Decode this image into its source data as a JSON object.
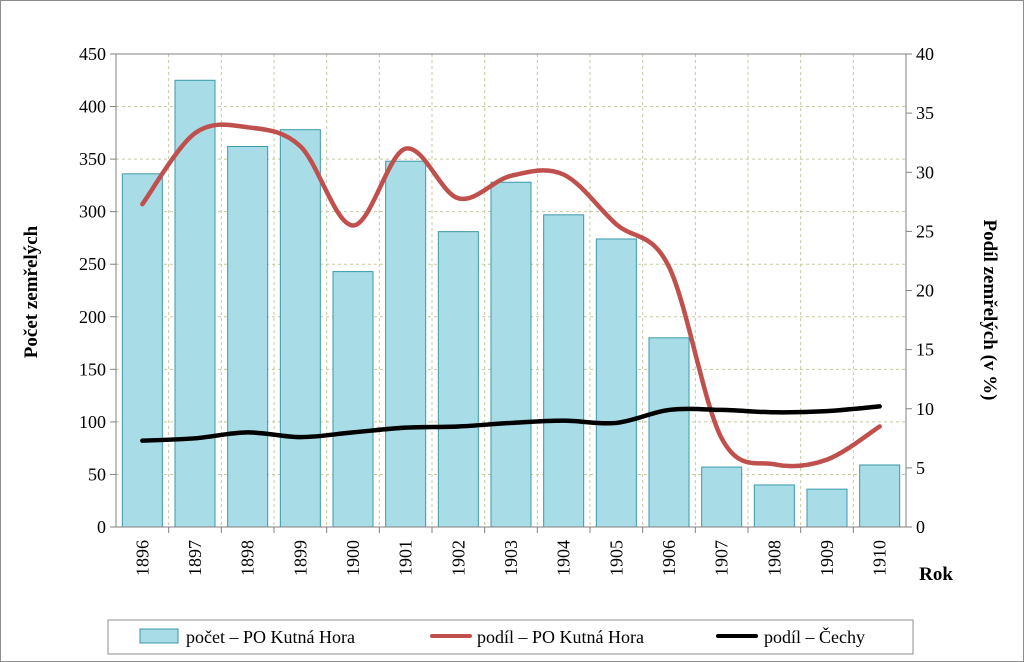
{
  "chart_data": {
    "type": "bar",
    "categories": [
      "1896",
      "1897",
      "1898",
      "1899",
      "1900",
      "1901",
      "1902",
      "1903",
      "1904",
      "1905",
      "1906",
      "1907",
      "1908",
      "1909",
      "1910"
    ],
    "xlabel": "Rok",
    "ylabel": "Počet zemřelých",
    "y2label": "Podíl zemřelých (v %)",
    "ylim": [
      0,
      450
    ],
    "y2lim": [
      0,
      40
    ],
    "yticks": [
      "0",
      "50",
      "100",
      "150",
      "200",
      "250",
      "300",
      "350",
      "400",
      "450"
    ],
    "y2ticks": [
      "0",
      "5",
      "10",
      "15",
      "20",
      "25",
      "30",
      "35",
      "40"
    ],
    "grid": true,
    "legend_position": "bottom",
    "series": [
      {
        "name": "počet – PO Kutná Hora",
        "kind": "bar",
        "axis": "left",
        "color": "#a8dce6",
        "edge_color": "#3a9aaa",
        "values": [
          336,
          425,
          362,
          378,
          243,
          348,
          281,
          328,
          297,
          274,
          180,
          57,
          40,
          36,
          59
        ]
      },
      {
        "name": "podíl – PO Kutná Hora",
        "kind": "line",
        "axis": "right",
        "color": "#c0504d",
        "values": [
          27.3,
          33.3,
          33.8,
          32.2,
          25.5,
          32.0,
          27.8,
          29.7,
          29.8,
          25.6,
          22.0,
          7.5,
          5.3,
          5.7,
          8.5
        ]
      },
      {
        "name": "podíl – Čechy",
        "kind": "line",
        "axis": "right",
        "color": "#000000",
        "values": [
          7.3,
          7.5,
          8.0,
          7.6,
          8.0,
          8.4,
          8.5,
          8.8,
          9.0,
          8.8,
          9.9,
          9.9,
          9.7,
          9.8,
          10.2
        ]
      }
    ]
  }
}
